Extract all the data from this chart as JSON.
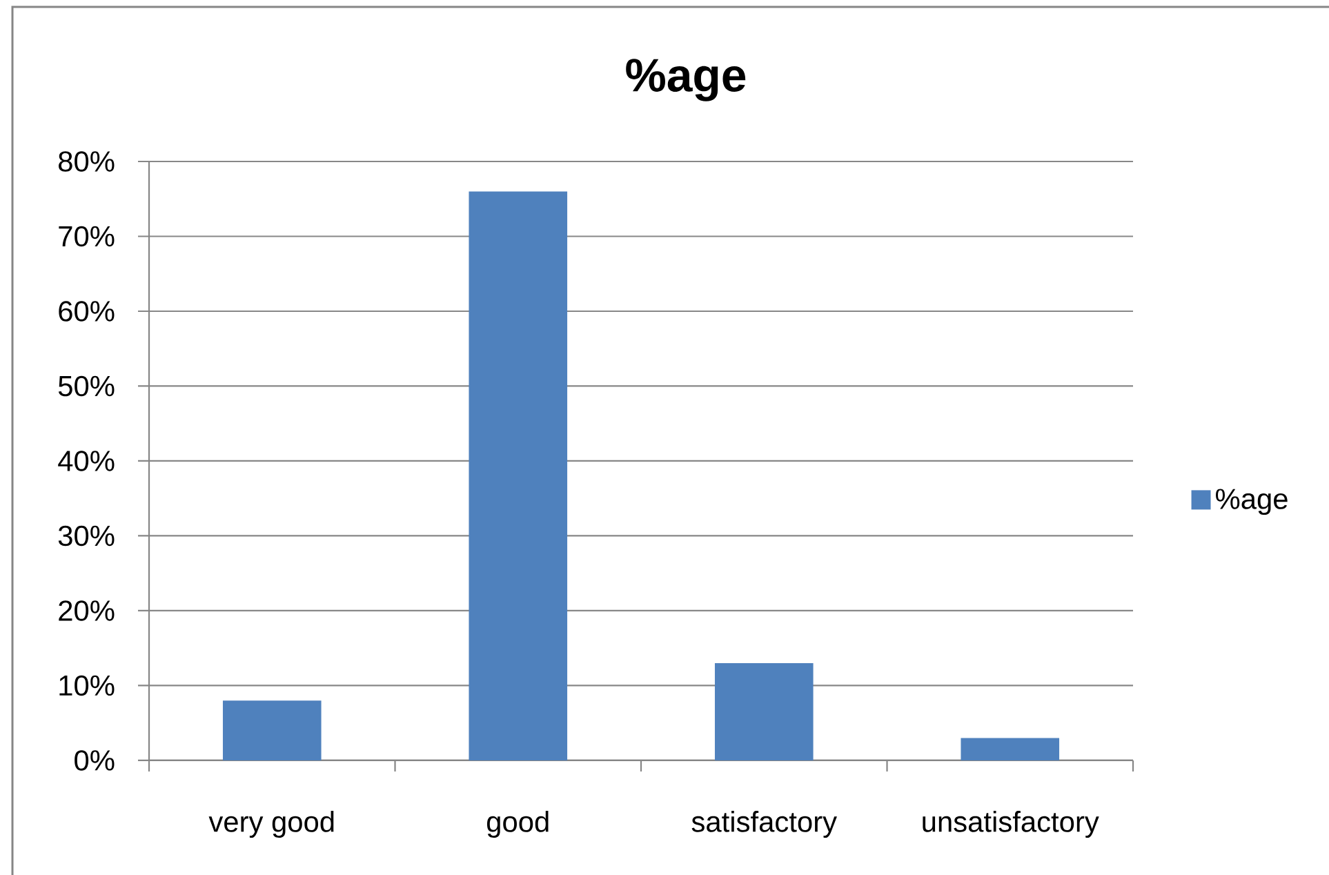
{
  "chart_data": {
    "type": "bar",
    "title": "%age",
    "categories": [
      "very good",
      "good",
      "satisfactory",
      "unsatisfactory"
    ],
    "series": [
      {
        "name": "%age",
        "color": "#4f81bd",
        "values": [
          8,
          76,
          13,
          3
        ]
      }
    ],
    "ylim": [
      0,
      80
    ],
    "yticks": [
      {
        "value": 0,
        "label": "0%"
      },
      {
        "value": 10,
        "label": "10%"
      },
      {
        "value": 20,
        "label": "20%"
      },
      {
        "value": 30,
        "label": "30%"
      },
      {
        "value": 40,
        "label": "40%"
      },
      {
        "value": 50,
        "label": "50%"
      },
      {
        "value": 60,
        "label": "60%"
      },
      {
        "value": 70,
        "label": "70%"
      },
      {
        "value": 80,
        "label": "80%"
      }
    ],
    "grid": "y",
    "legend": "right"
  }
}
